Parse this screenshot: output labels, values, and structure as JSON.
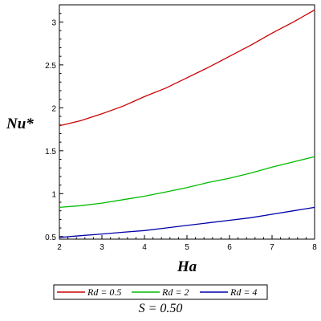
{
  "chart_data": {
    "type": "line",
    "xlabel": "Ha",
    "ylabel": "Nu*",
    "xlim": [
      2,
      8
    ],
    "ylim": [
      0.47,
      3.2
    ],
    "xticks": [
      2,
      3,
      4,
      5,
      6,
      7,
      8
    ],
    "yticks": [
      0.5,
      1,
      1.5,
      2,
      2.5,
      3
    ],
    "ytick_labels": [
      "0.5",
      "1",
      "1.5",
      "2",
      "2.5",
      "3"
    ],
    "grid": false,
    "legend_position": "bottom",
    "caption": "S = 0.50",
    "series": [
      {
        "name": "Rd = 0.5",
        "color": "#cc0000",
        "x": [
          2,
          2.5,
          3,
          3.5,
          4,
          4.5,
          5,
          5.5,
          6,
          6.5,
          7,
          7.5,
          8
        ],
        "y": [
          1.79,
          1.85,
          1.93,
          2.02,
          2.13,
          2.23,
          2.35,
          2.47,
          2.6,
          2.73,
          2.87,
          3.0,
          3.14
        ]
      },
      {
        "name": "Rd = 2",
        "color": "#00bb00",
        "x": [
          2,
          2.5,
          3,
          3.5,
          4,
          4.5,
          5,
          5.5,
          6,
          6.5,
          7,
          7.5,
          8
        ],
        "y": [
          0.84,
          0.86,
          0.89,
          0.93,
          0.97,
          1.02,
          1.07,
          1.13,
          1.18,
          1.24,
          1.31,
          1.37,
          1.43
        ]
      },
      {
        "name": "Rd = 4",
        "color": "#0000aa",
        "x": [
          2,
          2.5,
          3,
          3.5,
          4,
          4.5,
          5,
          5.5,
          6,
          6.5,
          7,
          7.5,
          8
        ],
        "y": [
          0.49,
          0.51,
          0.53,
          0.55,
          0.57,
          0.6,
          0.63,
          0.66,
          0.69,
          0.72,
          0.76,
          0.8,
          0.84
        ]
      }
    ]
  }
}
